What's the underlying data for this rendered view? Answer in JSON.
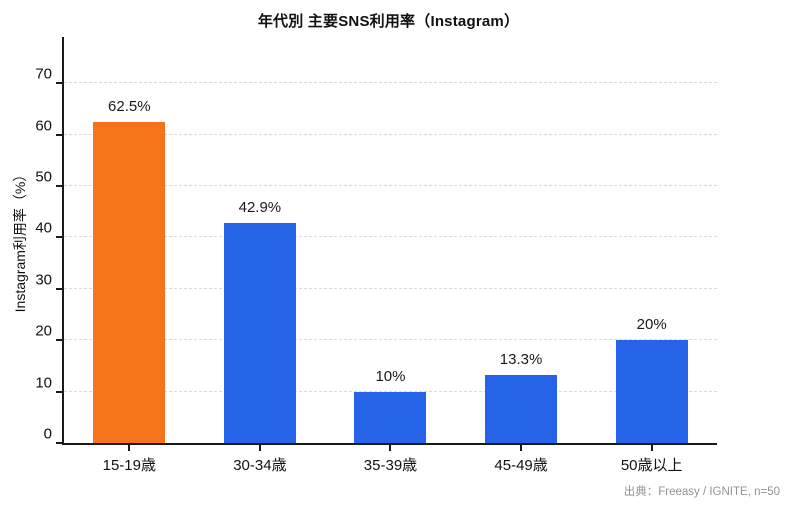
{
  "title": "年代別 主要SNS利用率（Instagram）",
  "source": "出典：Freeasy / IGNITE, n=50",
  "colors": {
    "highlight_bar": "#f5731a",
    "default_bar": "#2563e8",
    "axis": "#1a1a1a",
    "gridline": "#dadada",
    "muted_text": "#8f9398"
  },
  "chart_data": {
    "type": "bar",
    "title": "年代別 主要SNS利用率（Instagram）",
    "xlabel": "",
    "ylabel": "Instagram利用率（%）",
    "categories": [
      "15-19歳",
      "30-34歳",
      "35-39歳",
      "45-49歳",
      "50歳以上"
    ],
    "values": [
      62.5,
      42.9,
      10,
      13.3,
      20
    ],
    "value_labels": [
      "62.5%",
      "42.9%",
      "10%",
      "13.3%",
      "20%"
    ],
    "bar_colors": [
      "#f5731a",
      "#2563e8",
      "#2563e8",
      "#2563e8",
      "#2563e8"
    ],
    "yticks": [
      0,
      10,
      20,
      30,
      40,
      50,
      60,
      70
    ],
    "ylim": [
      0,
      79
    ],
    "grid": "horizontal-dashed",
    "legend": "none",
    "annotation": "出典：Freeasy / IGNITE, n=50"
  }
}
